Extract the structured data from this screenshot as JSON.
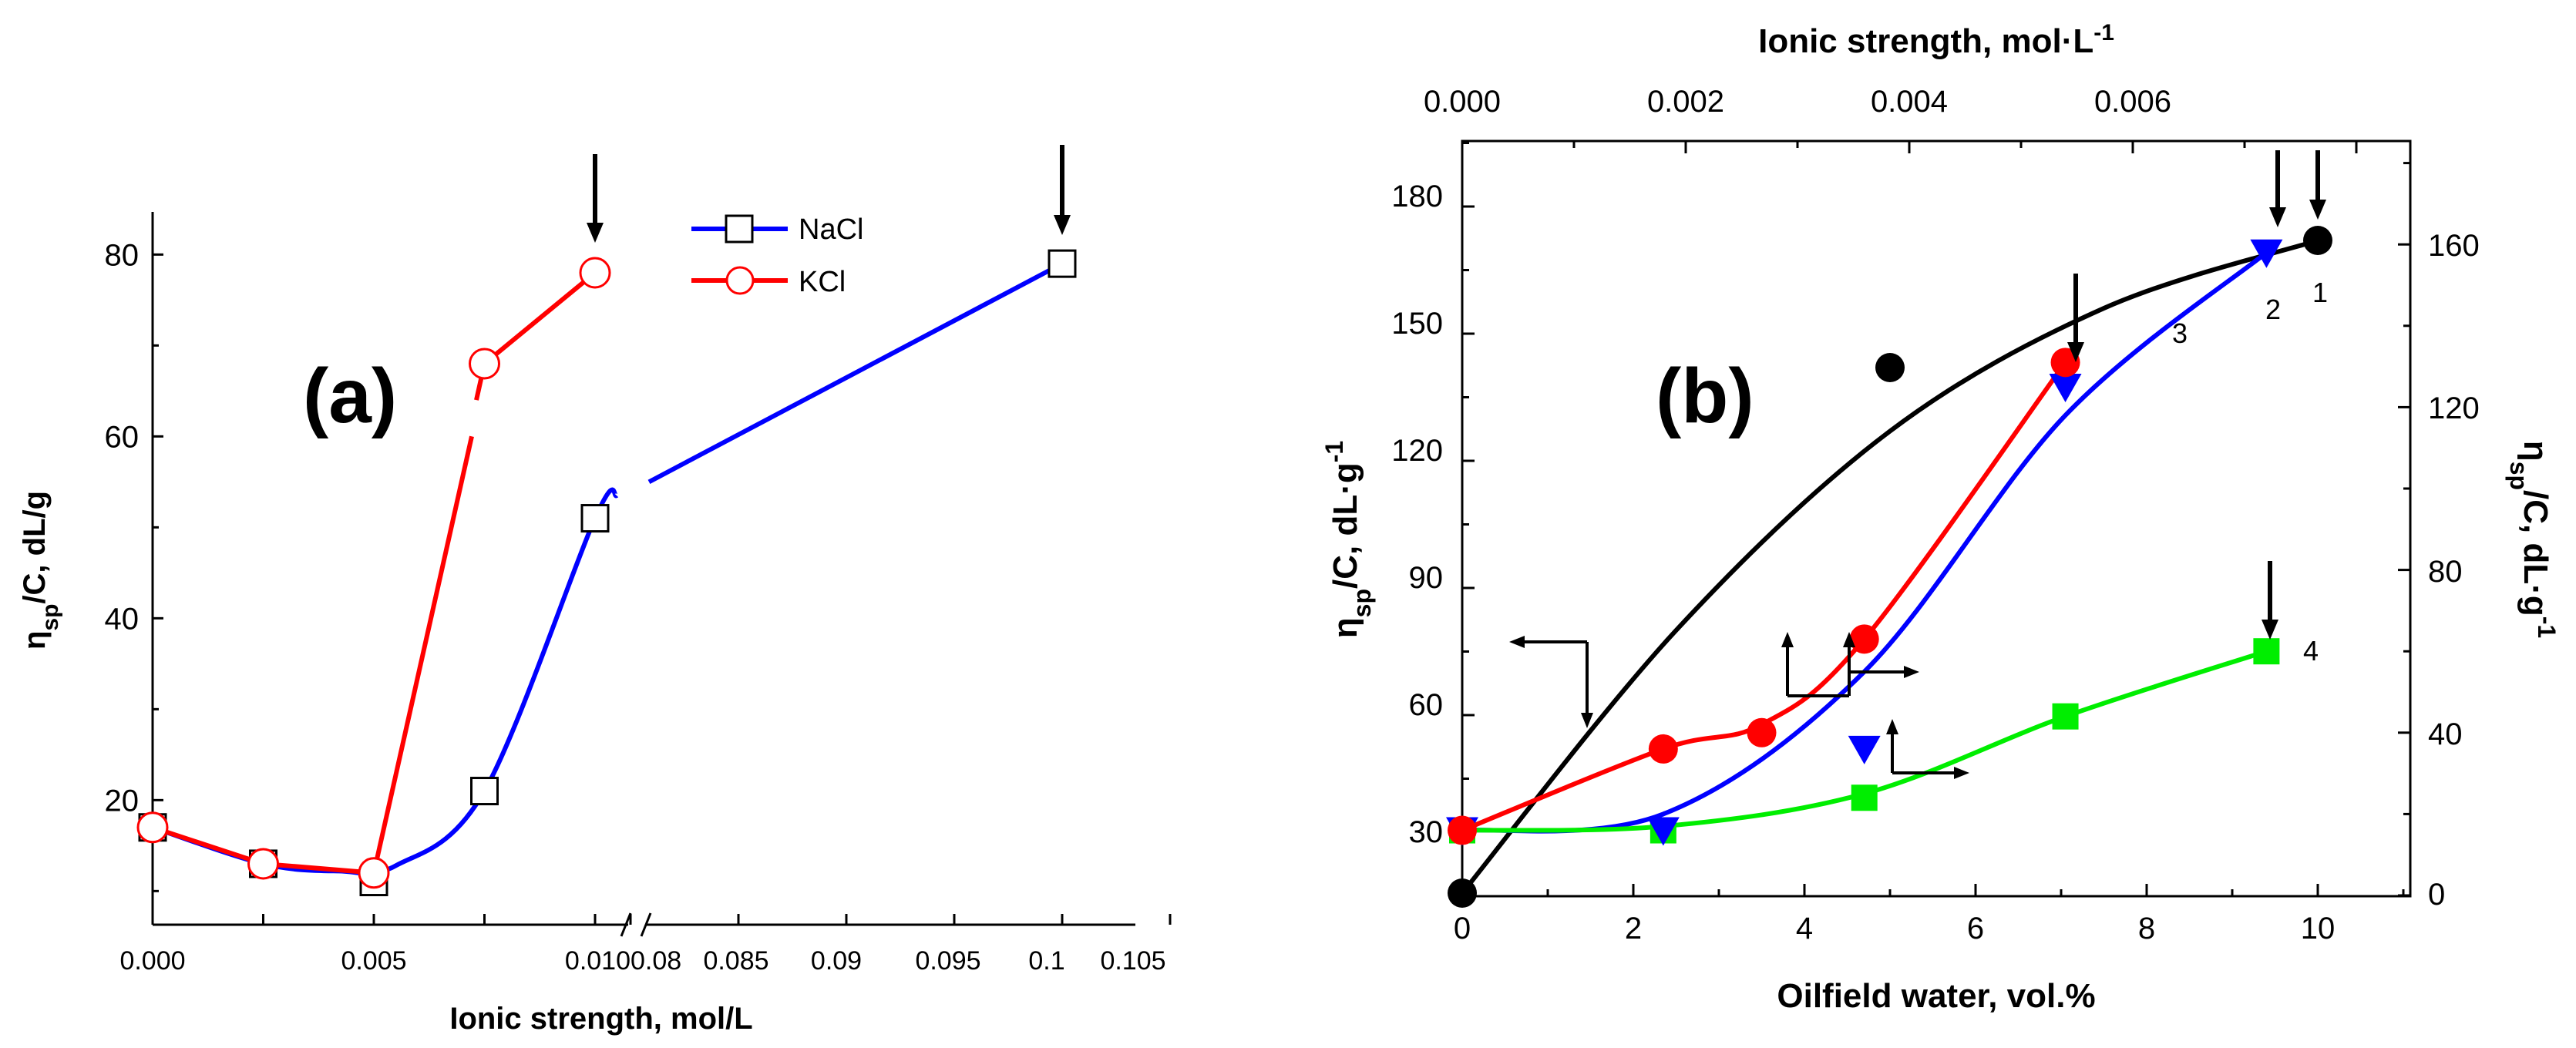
{
  "chart_data": [
    {
      "panel_label": "(a)",
      "type": "line",
      "xlabel": "Ionic strength, mol/L",
      "ylabel_main": "η",
      "ylabel_sub": "sp",
      "ylabel_rest": "/C, dL/g",
      "y_ticks": [
        20,
        40,
        60,
        80
      ],
      "x_ticks_left": [
        "0.000",
        "0.005",
        "0.010"
      ],
      "x_ticks_right": [
        "0.08",
        "0.085",
        "0.09",
        "0.095",
        "0.1",
        "0.105"
      ],
      "x_break": "0.010 → 0.08",
      "series": [
        {
          "name": "NaCl",
          "color": "#0000ff",
          "marker": "open-square",
          "x": [
            0.0,
            0.0025,
            0.005,
            0.0075,
            0.01,
            0.1
          ],
          "y": [
            17,
            13,
            11,
            21,
            51,
            79
          ]
        },
        {
          "name": "KCl",
          "color": "#ff0000",
          "marker": "open-circle",
          "x": [
            0.0,
            0.0025,
            0.005,
            0.0075,
            0.01
          ],
          "y": [
            17,
            13,
            12,
            68,
            78
          ]
        }
      ],
      "arrows_at": [
        {
          "series": "KCl",
          "x": 0.01
        },
        {
          "series": "NaCl",
          "x": 0.1
        }
      ]
    },
    {
      "panel_label": "(b)",
      "type": "line",
      "xlabel": "Oilfield water, vol.%",
      "x2label": "Ionic strength, mol·L",
      "x2label_sup": "-1",
      "ylabel_left_main": "η",
      "ylabel_left_sub": "sp",
      "ylabel_left_rest": "/C, dL·g",
      "ylabel_left_sup": "-1",
      "ylabel_right_main": "η",
      "ylabel_right_sub": "sp",
      "ylabel_right_rest": "/C, dL·g",
      "ylabel_right_sup": "-1",
      "x_ticks": [
        "0",
        "2",
        "4",
        "6",
        "8",
        "10"
      ],
      "x2_ticks": [
        "0.000",
        "0.002",
        "0.004",
        "0.006"
      ],
      "y_left_ticks": [
        "30",
        "60",
        "90",
        "120",
        "150",
        "180"
      ],
      "y_right_ticks": [
        "0",
        "40",
        "80",
        "120",
        "160"
      ],
      "series": [
        {
          "name": "1",
          "color": "#000000",
          "marker": "filled-circle",
          "axis": "left",
          "x": [
            0,
            5,
            10
          ],
          "y": [
            18,
            142,
            172
          ]
        },
        {
          "name": "2",
          "color": "#0000ff",
          "marker": "filled-triangle-down",
          "axis": "right",
          "x": [
            0,
            2.35,
            4.7,
            7.05,
            9.4
          ],
          "y": [
            16,
            16,
            36,
            125,
            158
          ]
        },
        {
          "name": "3",
          "color": "#ff0000",
          "marker": "filled-circle",
          "axis": "right",
          "x": [
            0,
            2.35,
            3.5,
            4.7,
            7.05
          ],
          "y": [
            16,
            36,
            40,
            63,
            131
          ]
        },
        {
          "name": "4",
          "color": "#00ee00",
          "marker": "filled-square",
          "axis": "right",
          "x": [
            0,
            2.35,
            4.7,
            7.05,
            9.4
          ],
          "y": [
            16,
            16,
            24,
            44,
            60
          ]
        }
      ]
    }
  ]
}
